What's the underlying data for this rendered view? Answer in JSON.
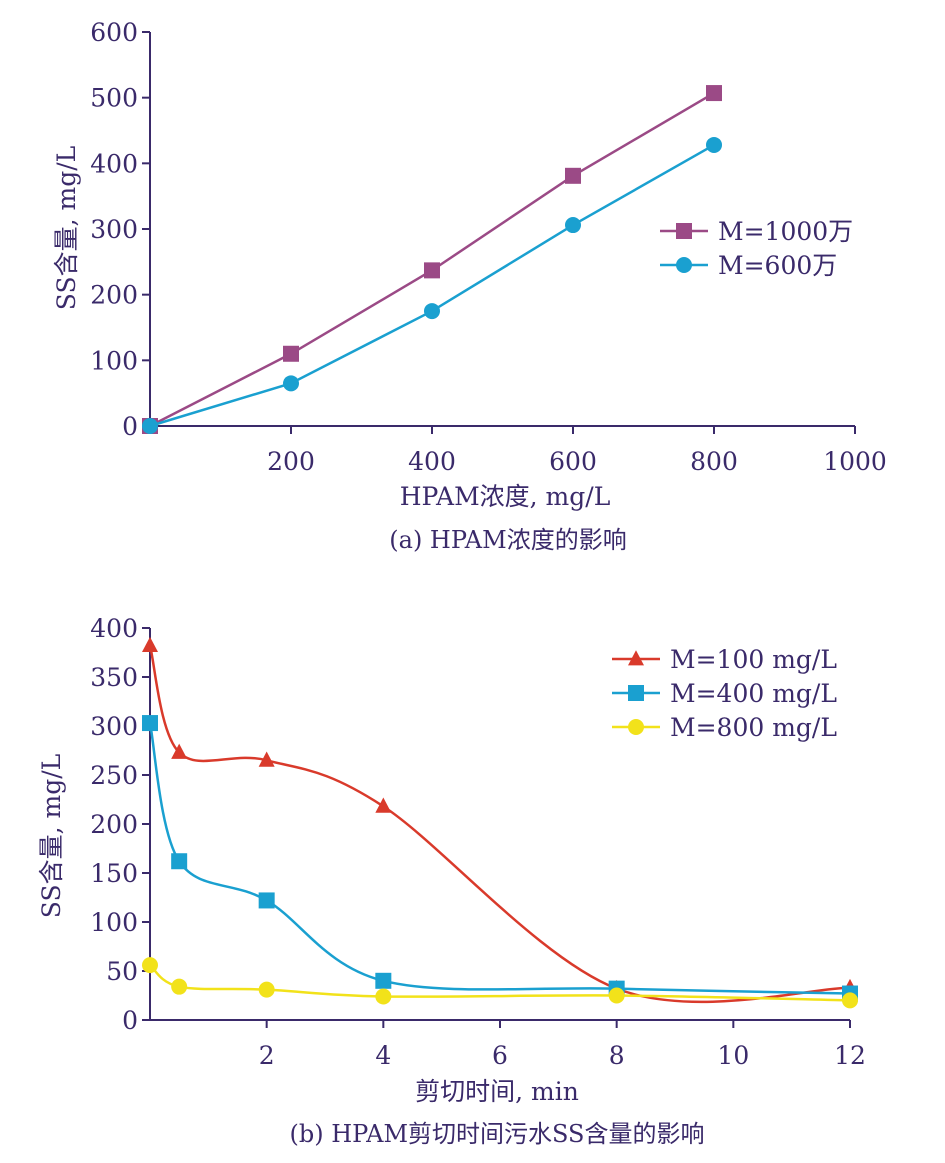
{
  "chart_data": [
    {
      "type": "line",
      "caption": "(a) HPAM浓度的影响",
      "xlabel": "HPAM浓度, mg/L",
      "ylabel": "SS含量, mg/L",
      "xlim": [
        0,
        1000
      ],
      "ylim": [
        0,
        600
      ],
      "xticks": [
        200,
        400,
        600,
        800,
        1000
      ],
      "yticks": [
        0,
        100,
        200,
        300,
        400,
        500,
        600
      ],
      "legend_position": "right",
      "grid": false,
      "series": [
        {
          "name": "M=1000万",
          "color": "#9b4a86",
          "marker": "square",
          "x": [
            0,
            200,
            400,
            600,
            800
          ],
          "y": [
            0,
            110,
            237,
            381,
            507
          ]
        },
        {
          "name": "M=600万",
          "color": "#1aa0d0",
          "marker": "circle",
          "x": [
            0,
            200,
            400,
            600,
            800
          ],
          "y": [
            0,
            65,
            175,
            306,
            428
          ]
        }
      ]
    },
    {
      "type": "line",
      "caption": "(b) HPAM剪切时间污水SS含量的影响",
      "xlabel": "剪切时间, min",
      "ylabel": "SS含量, mg/L",
      "xlim": [
        0,
        12
      ],
      "ylim": [
        0,
        400
      ],
      "xticks": [
        2,
        4,
        6,
        8,
        10,
        12
      ],
      "yticks": [
        0,
        50,
        100,
        150,
        200,
        250,
        300,
        350,
        400
      ],
      "legend_position": "top-right",
      "grid": false,
      "series": [
        {
          "name": "M=100 mg/L",
          "color": "#d93a2b",
          "marker": "triangle",
          "x": [
            0,
            0.5,
            2,
            4,
            8,
            12
          ],
          "y": [
            382,
            273,
            265,
            218,
            32,
            33
          ]
        },
        {
          "name": "M=400 mg/L",
          "color": "#1aa0d0",
          "marker": "square",
          "x": [
            0,
            0.5,
            2,
            4,
            8,
            12
          ],
          "y": [
            303,
            162,
            122,
            40,
            32,
            27
          ]
        },
        {
          "name": "M=800 mg/L",
          "color": "#f2e21a",
          "marker": "circle",
          "x": [
            0,
            0.5,
            2,
            4,
            8,
            12
          ],
          "y": [
            56,
            34,
            31,
            24,
            25,
            20
          ]
        }
      ]
    }
  ]
}
